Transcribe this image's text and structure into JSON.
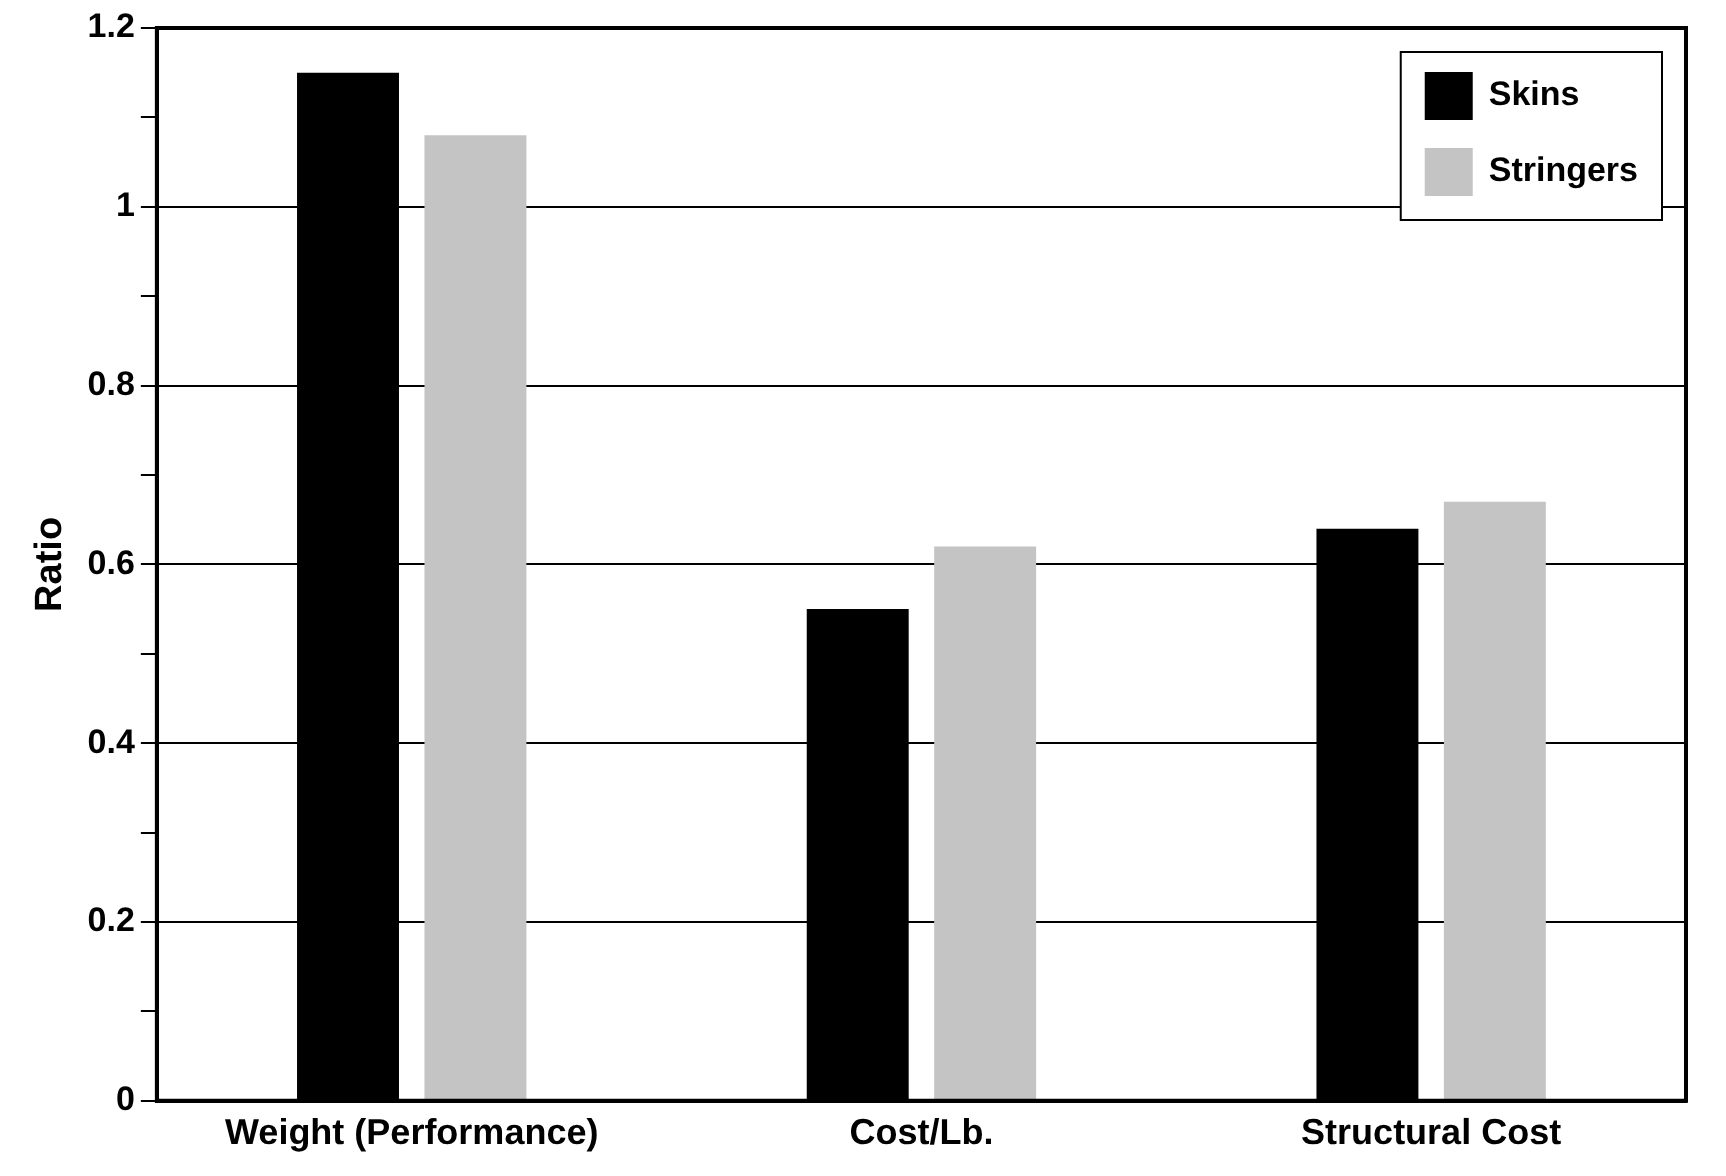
{
  "chart_data": {
    "type": "bar",
    "ylabel": "Ratio",
    "categories": [
      "Weight (Performance)",
      "Cost/Lb.",
      "Structural Cost"
    ],
    "series": [
      {
        "name": "Skins",
        "color": "#000000",
        "values": [
          1.15,
          0.55,
          0.64
        ]
      },
      {
        "name": "Stringers",
        "color": "#c4c4c4",
        "values": [
          1.08,
          0.62,
          0.67
        ]
      }
    ],
    "ylim": [
      0,
      1.2
    ],
    "yticks": [
      0,
      {
        "value": 0.1,
        "label": null
      },
      0.2,
      {
        "value": 0.3,
        "label": null
      },
      0.4,
      {
        "value": 0.5,
        "label": null
      },
      0.6,
      {
        "value": 0.7,
        "label": null
      },
      0.8,
      {
        "value": 0.9,
        "label": null
      },
      1,
      {
        "value": 1.1,
        "label": null
      },
      1.2
    ],
    "grid": "y",
    "legend": "top right"
  }
}
